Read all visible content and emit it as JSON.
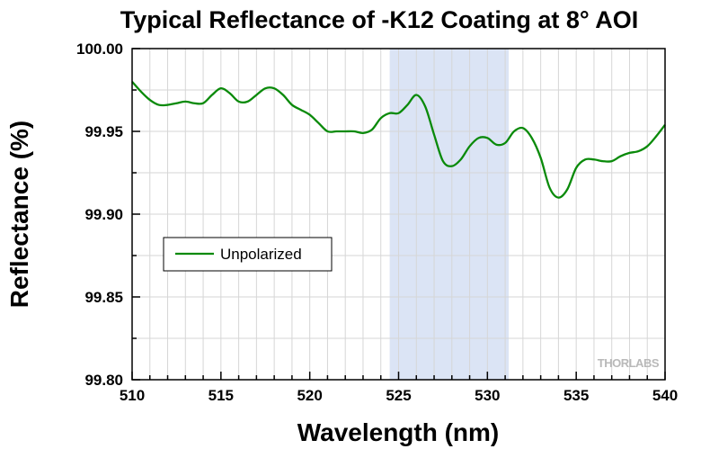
{
  "chart_data": {
    "type": "line",
    "title": "Typical Reflectance of -K12 Coating at 8° AOI",
    "xlabel": "Wavelength (nm)",
    "ylabel": "Reflectance (%)",
    "xlim": [
      510,
      540
    ],
    "ylim": [
      99.8,
      100.0
    ],
    "x_ticks": [
      510,
      515,
      520,
      525,
      530,
      535,
      540
    ],
    "y_ticks": [
      99.8,
      99.85,
      99.9,
      99.95,
      100.0
    ],
    "x_tick_labels": [
      "510",
      "515",
      "520",
      "525",
      "530",
      "535",
      "540"
    ],
    "y_tick_labels": [
      "99.80",
      "99.85",
      "99.90",
      "99.95",
      "100.00"
    ],
    "grid": true,
    "legend_position": "middle-left",
    "highlight_band": {
      "x_start": 524.5,
      "x_end": 531.2,
      "color": "#dbe4f5"
    },
    "watermark": "THORLABS",
    "series": [
      {
        "name": "Unpolarized",
        "color": "#0a8a0a",
        "points": [
          [
            510.0,
            99.98
          ],
          [
            510.5,
            99.974
          ],
          [
            511.0,
            99.969
          ],
          [
            511.5,
            99.966
          ],
          [
            512.0,
            99.966
          ],
          [
            512.5,
            99.967
          ],
          [
            513.0,
            99.968
          ],
          [
            513.5,
            99.967
          ],
          [
            514.0,
            99.967
          ],
          [
            514.5,
            99.972
          ],
          [
            515.0,
            99.976
          ],
          [
            515.5,
            99.973
          ],
          [
            516.0,
            99.968
          ],
          [
            516.5,
            99.968
          ],
          [
            517.0,
            99.972
          ],
          [
            517.5,
            99.976
          ],
          [
            518.0,
            99.976
          ],
          [
            518.5,
            99.972
          ],
          [
            519.0,
            99.966
          ],
          [
            519.5,
            99.963
          ],
          [
            520.0,
            99.96
          ],
          [
            520.5,
            99.955
          ],
          [
            521.0,
            99.95
          ],
          [
            521.5,
            99.95
          ],
          [
            522.0,
            99.95
          ],
          [
            522.5,
            99.95
          ],
          [
            523.0,
            99.949
          ],
          [
            523.5,
            99.951
          ],
          [
            524.0,
            99.958
          ],
          [
            524.5,
            99.961
          ],
          [
            525.0,
            99.961
          ],
          [
            525.5,
            99.966
          ],
          [
            526.0,
            99.972
          ],
          [
            526.5,
            99.965
          ],
          [
            527.0,
            99.948
          ],
          [
            527.5,
            99.932
          ],
          [
            528.0,
            99.929
          ],
          [
            528.5,
            99.933
          ],
          [
            529.0,
            99.941
          ],
          [
            529.5,
            99.946
          ],
          [
            530.0,
            99.946
          ],
          [
            530.5,
            99.942
          ],
          [
            531.0,
            99.943
          ],
          [
            531.5,
            99.95
          ],
          [
            532.0,
            99.952
          ],
          [
            532.5,
            99.946
          ],
          [
            533.0,
            99.934
          ],
          [
            533.5,
            99.916
          ],
          [
            534.0,
            99.91
          ],
          [
            534.5,
            99.915
          ],
          [
            535.0,
            99.928
          ],
          [
            535.5,
            99.933
          ],
          [
            536.0,
            99.933
          ],
          [
            536.5,
            99.932
          ],
          [
            537.0,
            99.932
          ],
          [
            537.5,
            99.935
          ],
          [
            538.0,
            99.937
          ],
          [
            538.5,
            99.938
          ],
          [
            539.0,
            99.941
          ],
          [
            539.5,
            99.947
          ],
          [
            540.0,
            99.954
          ]
        ]
      }
    ]
  }
}
